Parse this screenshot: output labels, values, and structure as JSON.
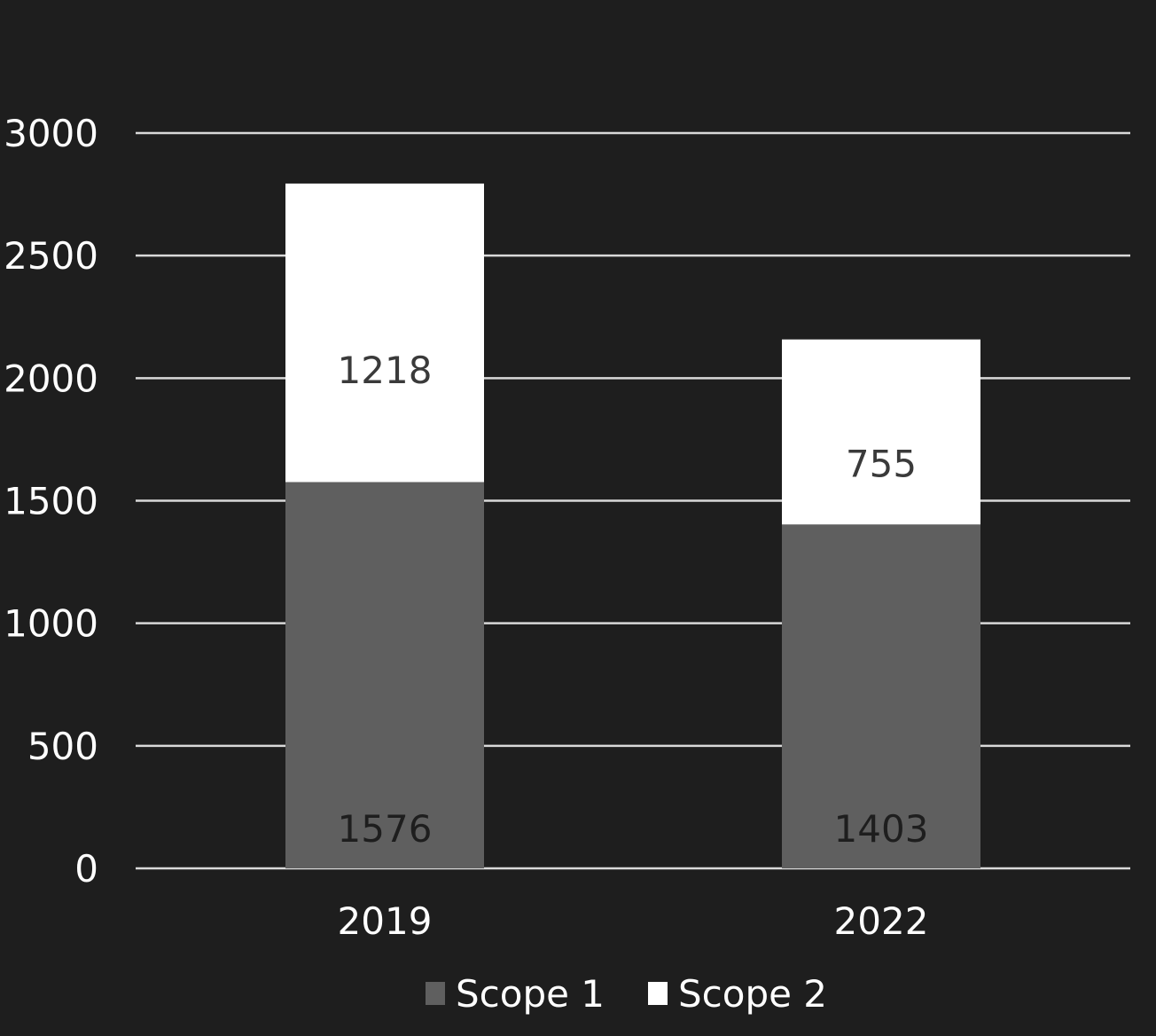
{
  "chart_data": {
    "type": "bar",
    "stacked": true,
    "categories": [
      "2019",
      "2022"
    ],
    "series": [
      {
        "name": "Scope 1",
        "values": [
          1576,
          1403
        ],
        "color": "#5f5f5f",
        "label_color": "#1e1e1e"
      },
      {
        "name": "Scope 2",
        "values": [
          1218,
          755
        ],
        "color": "#ffffff",
        "label_color": "#3a3a3a"
      }
    ],
    "title": "",
    "xlabel": "",
    "ylabel": "",
    "ylim": [
      0,
      3000
    ],
    "yticks": [
      "0",
      "500",
      "1000",
      "1500",
      "2000",
      "2500",
      "3000"
    ],
    "grid": true,
    "legend_position": "bottom",
    "colors": {
      "background": "#1e1e1e",
      "gridline": "#d9d9d9",
      "text": "#ffffff"
    }
  }
}
